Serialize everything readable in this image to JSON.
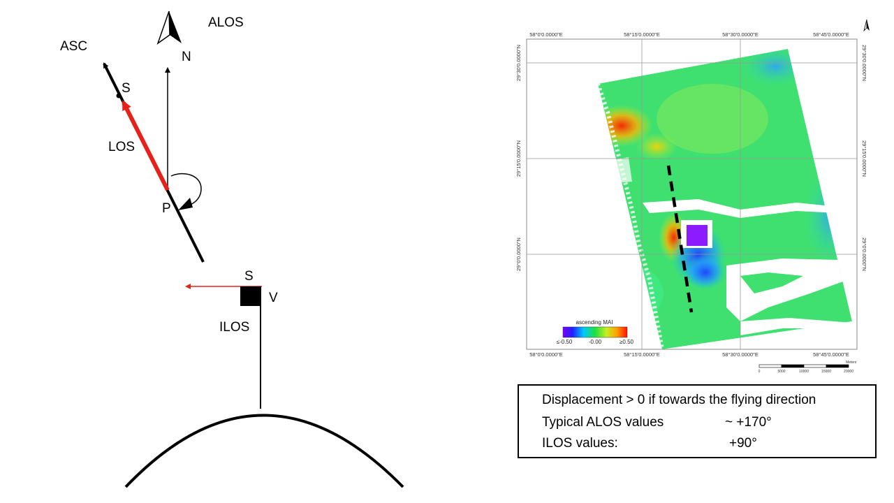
{
  "diagram": {
    "labels": {
      "alos": "ALOS",
      "asc": "ASC",
      "north": "N",
      "s_top": "S",
      "los": "LOS",
      "p": "P",
      "s_bottom": "S",
      "v": "V",
      "ilos": "ILOS"
    },
    "colors": {
      "los_arrow": "#e8201a",
      "line": "#000000"
    }
  },
  "map": {
    "top_ticks": [
      "58°0'0.0000\"E",
      "58°15'0.0000\"E",
      "58°30'0.0000\"E",
      "58°45'0.0000\"E"
    ],
    "bottom_ticks": [
      "58°0'0.0000\"E",
      "58°15'0.0000\"E",
      "58°30'0.0000\"E",
      "58°45'0.0000\"E"
    ],
    "left_ticks": [
      "29°30'0.0000\"N",
      "29°15'0.0000\"N",
      "29°0'0.0000\"N"
    ],
    "right_ticks": [
      "29°30'0.0000\"N",
      "29°15'0.0000\"N",
      "29°0'0.0000\"N"
    ],
    "colorbar": {
      "title": "ascending MAI",
      "min": "≤-0.50",
      "mid": "-0.00",
      "max": "≥0.50"
    },
    "scalebar": {
      "ticks": [
        "0",
        "5000",
        "10000",
        "15000",
        "20000"
      ],
      "unit": "Meters"
    },
    "north_icon": "north-arrow-icon"
  },
  "info": {
    "line1": "Displacement > 0 if towards the flying direction",
    "line2_label": "Typical ALOS values",
    "line2_value": "~  +170°",
    "line3_label": "ILOS values:",
    "line3_value": "+90°"
  }
}
